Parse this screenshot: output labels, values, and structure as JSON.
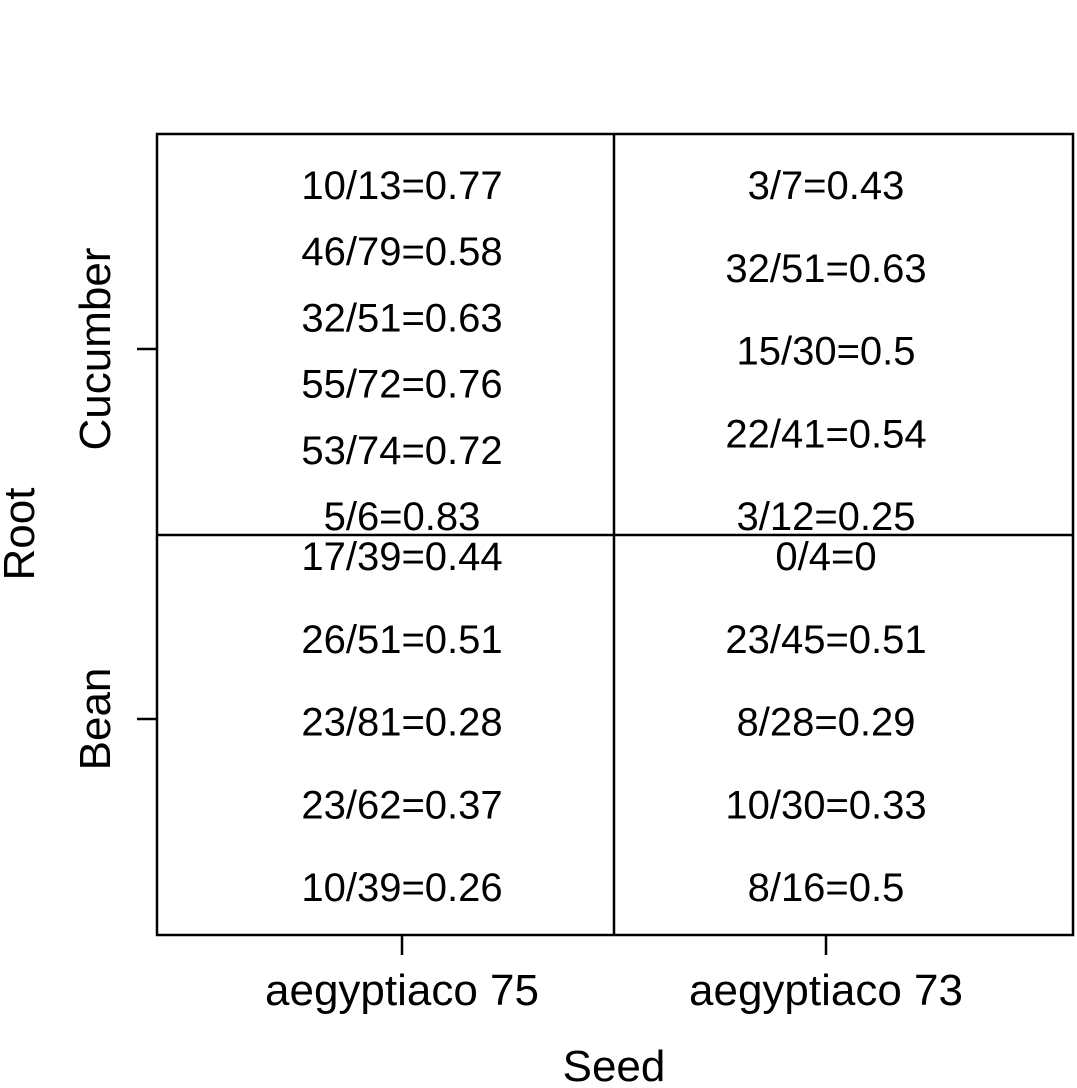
{
  "chart_data": {
    "type": "table",
    "xlabel": "Seed",
    "ylabel": "Root",
    "x_categories": [
      "aegyptiaco 75",
      "aegyptiaco 73"
    ],
    "y_categories": [
      "Bean",
      "Cucumber"
    ],
    "cells": [
      {
        "seed": "aegyptiaco 75",
        "root": "Cucumber",
        "entries": [
          {
            "num": 10,
            "den": 13,
            "ratio": 0.77,
            "label": "10/13=0.77"
          },
          {
            "num": 46,
            "den": 79,
            "ratio": 0.58,
            "label": "46/79=0.58"
          },
          {
            "num": 32,
            "den": 51,
            "ratio": 0.63,
            "label": "32/51=0.63"
          },
          {
            "num": 55,
            "den": 72,
            "ratio": 0.76,
            "label": "55/72=0.76"
          },
          {
            "num": 53,
            "den": 74,
            "ratio": 0.72,
            "label": "53/74=0.72"
          },
          {
            "num": 5,
            "den": 6,
            "ratio": 0.83,
            "label": "5/6=0.83"
          }
        ]
      },
      {
        "seed": "aegyptiaco 73",
        "root": "Cucumber",
        "entries": [
          {
            "num": 3,
            "den": 7,
            "ratio": 0.43,
            "label": "3/7=0.43"
          },
          {
            "num": 32,
            "den": 51,
            "ratio": 0.63,
            "label": "32/51=0.63"
          },
          {
            "num": 15,
            "den": 30,
            "ratio": 0.5,
            "label": "15/30=0.5"
          },
          {
            "num": 22,
            "den": 41,
            "ratio": 0.54,
            "label": "22/41=0.54"
          },
          {
            "num": 3,
            "den": 12,
            "ratio": 0.25,
            "label": "3/12=0.25"
          }
        ]
      },
      {
        "seed": "aegyptiaco 75",
        "root": "Bean",
        "entries": [
          {
            "num": 17,
            "den": 39,
            "ratio": 0.44,
            "label": "17/39=0.44"
          },
          {
            "num": 26,
            "den": 51,
            "ratio": 0.51,
            "label": "26/51=0.51"
          },
          {
            "num": 23,
            "den": 81,
            "ratio": 0.28,
            "label": "23/81=0.28"
          },
          {
            "num": 23,
            "den": 62,
            "ratio": 0.37,
            "label": "23/62=0.37"
          },
          {
            "num": 10,
            "den": 39,
            "ratio": 0.26,
            "label": "10/39=0.26"
          }
        ]
      },
      {
        "seed": "aegyptiaco 73",
        "root": "Bean",
        "entries": [
          {
            "num": 0,
            "den": 4,
            "ratio": 0,
            "label": "0/4=0"
          },
          {
            "num": 23,
            "den": 45,
            "ratio": 0.51,
            "label": "23/45=0.51"
          },
          {
            "num": 8,
            "den": 28,
            "ratio": 0.29,
            "label": "8/28=0.29"
          },
          {
            "num": 10,
            "den": 30,
            "ratio": 0.33,
            "label": "10/30=0.33"
          },
          {
            "num": 8,
            "den": 16,
            "ratio": 0.5,
            "label": "8/16=0.5"
          }
        ]
      }
    ]
  }
}
